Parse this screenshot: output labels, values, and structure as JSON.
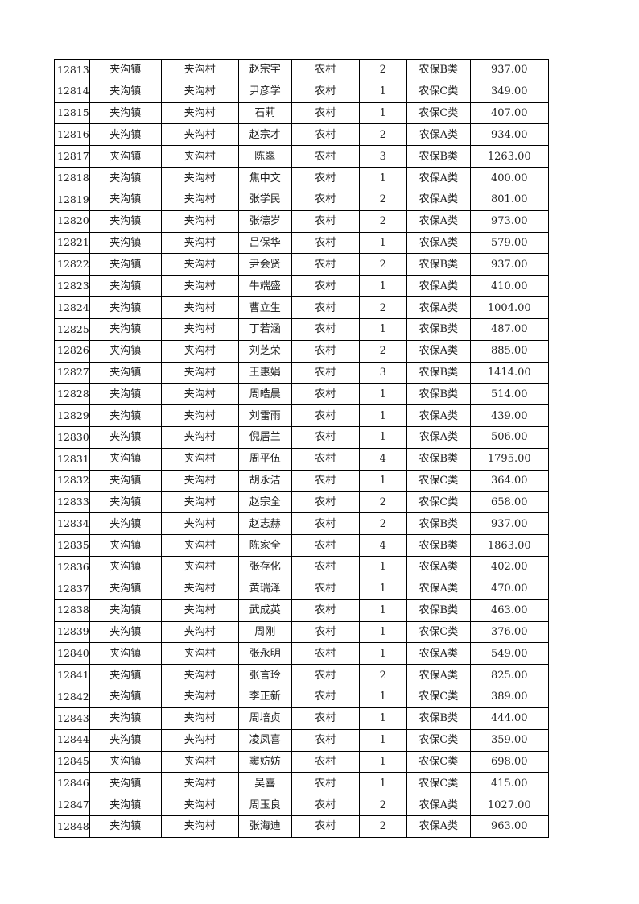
{
  "table": {
    "rows": [
      [
        "12813",
        "夹沟镇",
        "夹沟村",
        "赵宗宇",
        "农村",
        "2",
        "农保B类",
        "937.00"
      ],
      [
        "12814",
        "夹沟镇",
        "夹沟村",
        "尹彦学",
        "农村",
        "1",
        "农保C类",
        "349.00"
      ],
      [
        "12815",
        "夹沟镇",
        "夹沟村",
        "石莉",
        "农村",
        "1",
        "农保C类",
        "407.00"
      ],
      [
        "12816",
        "夹沟镇",
        "夹沟村",
        "赵宗才",
        "农村",
        "2",
        "农保A类",
        "934.00"
      ],
      [
        "12817",
        "夹沟镇",
        "夹沟村",
        "陈翠",
        "农村",
        "3",
        "农保B类",
        "1263.00"
      ],
      [
        "12818",
        "夹沟镇",
        "夹沟村",
        "焦中文",
        "农村",
        "1",
        "农保A类",
        "400.00"
      ],
      [
        "12819",
        "夹沟镇",
        "夹沟村",
        "张学民",
        "农村",
        "2",
        "农保A类",
        "801.00"
      ],
      [
        "12820",
        "夹沟镇",
        "夹沟村",
        "张德岁",
        "农村",
        "2",
        "农保A类",
        "973.00"
      ],
      [
        "12821",
        "夹沟镇",
        "夹沟村",
        "吕保华",
        "农村",
        "1",
        "农保A类",
        "579.00"
      ],
      [
        "12822",
        "夹沟镇",
        "夹沟村",
        "尹会贤",
        "农村",
        "2",
        "农保B类",
        "937.00"
      ],
      [
        "12823",
        "夹沟镇",
        "夹沟村",
        "牛端盛",
        "农村",
        "1",
        "农保A类",
        "410.00"
      ],
      [
        "12824",
        "夹沟镇",
        "夹沟村",
        "曹立生",
        "农村",
        "2",
        "农保A类",
        "1004.00"
      ],
      [
        "12825",
        "夹沟镇",
        "夹沟村",
        "丁若涵",
        "农村",
        "1",
        "农保B类",
        "487.00"
      ],
      [
        "12826",
        "夹沟镇",
        "夹沟村",
        "刘芝荣",
        "农村",
        "2",
        "农保A类",
        "885.00"
      ],
      [
        "12827",
        "夹沟镇",
        "夹沟村",
        "王惠娟",
        "农村",
        "3",
        "农保B类",
        "1414.00"
      ],
      [
        "12828",
        "夹沟镇",
        "夹沟村",
        "周皓晨",
        "农村",
        "1",
        "农保B类",
        "514.00"
      ],
      [
        "12829",
        "夹沟镇",
        "夹沟村",
        "刘雷雨",
        "农村",
        "1",
        "农保A类",
        "439.00"
      ],
      [
        "12830",
        "夹沟镇",
        "夹沟村",
        "倪居兰",
        "农村",
        "1",
        "农保A类",
        "506.00"
      ],
      [
        "12831",
        "夹沟镇",
        "夹沟村",
        "周平伍",
        "农村",
        "4",
        "农保B类",
        "1795.00"
      ],
      [
        "12832",
        "夹沟镇",
        "夹沟村",
        "胡永洁",
        "农村",
        "1",
        "农保C类",
        "364.00"
      ],
      [
        "12833",
        "夹沟镇",
        "夹沟村",
        "赵宗全",
        "农村",
        "2",
        "农保C类",
        "658.00"
      ],
      [
        "12834",
        "夹沟镇",
        "夹沟村",
        "赵志赫",
        "农村",
        "2",
        "农保B类",
        "937.00"
      ],
      [
        "12835",
        "夹沟镇",
        "夹沟村",
        "陈家全",
        "农村",
        "4",
        "农保B类",
        "1863.00"
      ],
      [
        "12836",
        "夹沟镇",
        "夹沟村",
        "张存化",
        "农村",
        "1",
        "农保A类",
        "402.00"
      ],
      [
        "12837",
        "夹沟镇",
        "夹沟村",
        "黄瑞泽",
        "农村",
        "1",
        "农保A类",
        "470.00"
      ],
      [
        "12838",
        "夹沟镇",
        "夹沟村",
        "武成英",
        "农村",
        "1",
        "农保B类",
        "463.00"
      ],
      [
        "12839",
        "夹沟镇",
        "夹沟村",
        "周刚",
        "农村",
        "1",
        "农保C类",
        "376.00"
      ],
      [
        "12840",
        "夹沟镇",
        "夹沟村",
        "张永明",
        "农村",
        "1",
        "农保A类",
        "549.00"
      ],
      [
        "12841",
        "夹沟镇",
        "夹沟村",
        "张言玲",
        "农村",
        "2",
        "农保A类",
        "825.00"
      ],
      [
        "12842",
        "夹沟镇",
        "夹沟村",
        "李正新",
        "农村",
        "1",
        "农保C类",
        "389.00"
      ],
      [
        "12843",
        "夹沟镇",
        "夹沟村",
        "周培贞",
        "农村",
        "1",
        "农保B类",
        "444.00"
      ],
      [
        "12844",
        "夹沟镇",
        "夹沟村",
        "凌凤喜",
        "农村",
        "1",
        "农保C类",
        "359.00"
      ],
      [
        "12845",
        "夹沟镇",
        "夹沟村",
        "窦妨妨",
        "农村",
        "1",
        "农保C类",
        "698.00"
      ],
      [
        "12846",
        "夹沟镇",
        "夹沟村",
        "吴喜",
        "农村",
        "1",
        "农保C类",
        "415.00"
      ],
      [
        "12847",
        "夹沟镇",
        "夹沟村",
        "周玉良",
        "农村",
        "2",
        "农保A类",
        "1027.00"
      ],
      [
        "12848",
        "夹沟镇",
        "夹沟村",
        "张海迪",
        "农村",
        "2",
        "农保A类",
        "963.00"
      ]
    ]
  }
}
